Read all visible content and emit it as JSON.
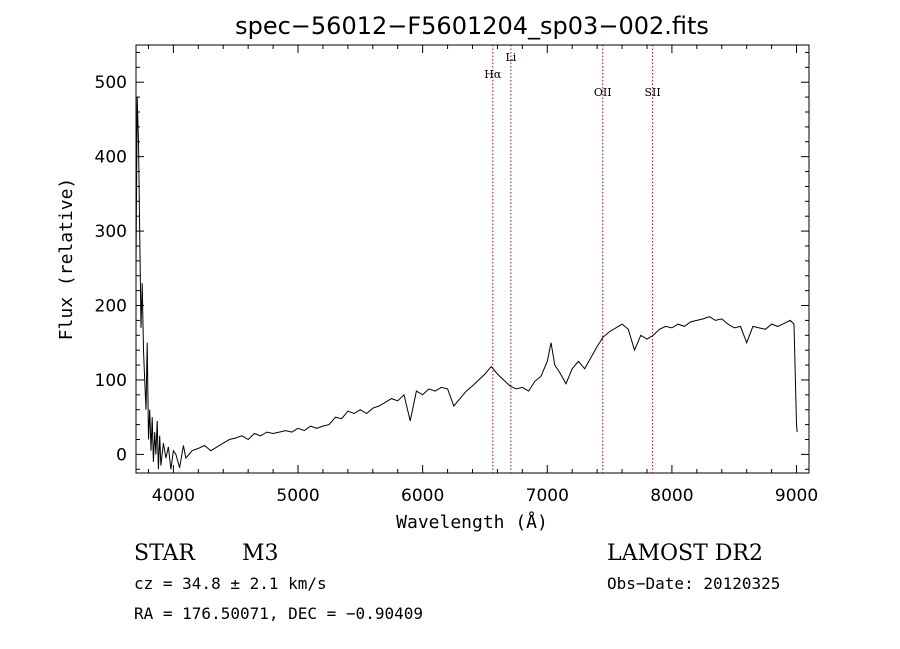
{
  "chart_data": {
    "type": "line",
    "title": "spec−56012−F5601204_sp03−002.fits",
    "xlabel": "Wavelength (Å)",
    "ylabel": "Flux (relative)",
    "xlim": [
      3700,
      9100
    ],
    "ylim": [
      -25,
      550
    ],
    "x_ticks": [
      4000,
      5000,
      6000,
      7000,
      8000,
      9000
    ],
    "y_ticks": [
      0,
      100,
      200,
      300,
      400,
      500
    ],
    "grid": false,
    "series": [
      {
        "points": [
          [
            3700,
            250
          ],
          [
            3710,
            480
          ],
          [
            3720,
            420
          ],
          [
            3730,
            300
          ],
          [
            3740,
            170
          ],
          [
            3750,
            230
          ],
          [
            3760,
            140
          ],
          [
            3770,
            100
          ],
          [
            3780,
            60
          ],
          [
            3790,
            150
          ],
          [
            3800,
            20
          ],
          [
            3810,
            60
          ],
          [
            3820,
            5
          ],
          [
            3830,
            50
          ],
          [
            3840,
            -10
          ],
          [
            3850,
            30
          ],
          [
            3860,
            0
          ],
          [
            3870,
            45
          ],
          [
            3880,
            -20
          ],
          [
            3890,
            25
          ],
          [
            3900,
            -15
          ],
          [
            3920,
            15
          ],
          [
            3940,
            -5
          ],
          [
            3960,
            10
          ],
          [
            3980,
            -20
          ],
          [
            4000,
            5
          ],
          [
            4020,
            0
          ],
          [
            4050,
            -18
          ],
          [
            4080,
            12
          ],
          [
            4100,
            -5
          ],
          [
            4150,
            5
          ],
          [
            4200,
            8
          ],
          [
            4250,
            12
          ],
          [
            4300,
            5
          ],
          [
            4350,
            10
          ],
          [
            4400,
            15
          ],
          [
            4450,
            20
          ],
          [
            4500,
            22
          ],
          [
            4550,
            25
          ],
          [
            4600,
            20
          ],
          [
            4650,
            28
          ],
          [
            4700,
            25
          ],
          [
            4750,
            30
          ],
          [
            4800,
            28
          ],
          [
            4850,
            30
          ],
          [
            4900,
            32
          ],
          [
            4950,
            30
          ],
          [
            5000,
            35
          ],
          [
            5050,
            32
          ],
          [
            5100,
            38
          ],
          [
            5150,
            35
          ],
          [
            5200,
            38
          ],
          [
            5250,
            40
          ],
          [
            5300,
            50
          ],
          [
            5350,
            48
          ],
          [
            5400,
            58
          ],
          [
            5450,
            55
          ],
          [
            5500,
            60
          ],
          [
            5550,
            55
          ],
          [
            5600,
            62
          ],
          [
            5650,
            65
          ],
          [
            5700,
            70
          ],
          [
            5750,
            75
          ],
          [
            5800,
            72
          ],
          [
            5850,
            80
          ],
          [
            5900,
            45
          ],
          [
            5950,
            85
          ],
          [
            6000,
            80
          ],
          [
            6050,
            88
          ],
          [
            6100,
            85
          ],
          [
            6150,
            90
          ],
          [
            6200,
            88
          ],
          [
            6250,
            65
          ],
          [
            6300,
            75
          ],
          [
            6350,
            85
          ],
          [
            6400,
            92
          ],
          [
            6450,
            100
          ],
          [
            6500,
            108
          ],
          [
            6550,
            118
          ],
          [
            6580,
            112
          ],
          [
            6600,
            108
          ],
          [
            6650,
            100
          ],
          [
            6700,
            92
          ],
          [
            6750,
            88
          ],
          [
            6800,
            90
          ],
          [
            6850,
            85
          ],
          [
            6900,
            98
          ],
          [
            6950,
            105
          ],
          [
            7000,
            125
          ],
          [
            7030,
            150
          ],
          [
            7060,
            120
          ],
          [
            7100,
            110
          ],
          [
            7150,
            95
          ],
          [
            7200,
            115
          ],
          [
            7250,
            125
          ],
          [
            7300,
            115
          ],
          [
            7350,
            130
          ],
          [
            7400,
            145
          ],
          [
            7450,
            158
          ],
          [
            7500,
            165
          ],
          [
            7550,
            170
          ],
          [
            7600,
            175
          ],
          [
            7650,
            168
          ],
          [
            7700,
            140
          ],
          [
            7750,
            160
          ],
          [
            7800,
            155
          ],
          [
            7850,
            160
          ],
          [
            7900,
            168
          ],
          [
            7950,
            172
          ],
          [
            8000,
            170
          ],
          [
            8050,
            175
          ],
          [
            8100,
            172
          ],
          [
            8150,
            178
          ],
          [
            8200,
            180
          ],
          [
            8250,
            182
          ],
          [
            8300,
            185
          ],
          [
            8350,
            180
          ],
          [
            8400,
            182
          ],
          [
            8450,
            175
          ],
          [
            8500,
            170
          ],
          [
            8550,
            172
          ],
          [
            8600,
            150
          ],
          [
            8650,
            172
          ],
          [
            8700,
            170
          ],
          [
            8750,
            168
          ],
          [
            8800,
            175
          ],
          [
            8850,
            172
          ],
          [
            8900,
            176
          ],
          [
            8950,
            180
          ],
          [
            8980,
            175
          ],
          [
            9000,
            40
          ],
          [
            9005,
            30
          ]
        ]
      }
    ],
    "annotations": [
      {
        "x": 6563,
        "label": "Hα"
      },
      {
        "x": 6708,
        "label": "Li"
      },
      {
        "x": 7445,
        "label": "OII"
      },
      {
        "x": 7845,
        "label": "SII"
      }
    ]
  },
  "info": {
    "class": "STAR",
    "subclass": "M3",
    "survey": "LAMOST DR2",
    "cz": "cz = 34.8 ± 2.1 km/s",
    "obs_date": "Obs−Date: 20120325",
    "coords": "RA = 176.50071, DEC =  −0.90409"
  },
  "colors": {
    "spectrum": "#000000",
    "annotation_line": "#8b1a1a"
  }
}
